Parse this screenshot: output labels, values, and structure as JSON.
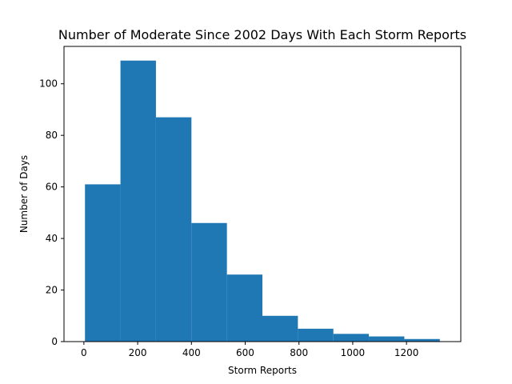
{
  "chart_data": {
    "type": "bar",
    "title": "Number of Moderate Since 2002 Days With Each Storm Reports",
    "xlabel": "Storm Reports",
    "ylabel": "Number of Days",
    "bin_edges": [
      4,
      136,
      268,
      400,
      532,
      664,
      796,
      928,
      1060,
      1192,
      1324
    ],
    "values": [
      61,
      109,
      87,
      46,
      26,
      10,
      5,
      3,
      2,
      1
    ],
    "xlim": [
      -74,
      1402
    ],
    "ylim": [
      0,
      114.5
    ],
    "xticks": [
      0,
      200,
      400,
      600,
      800,
      1000,
      1200
    ],
    "yticks": [
      0,
      20,
      40,
      60,
      80,
      100
    ],
    "bar_color": "#1f77b4",
    "grid": false,
    "legend": "none"
  }
}
